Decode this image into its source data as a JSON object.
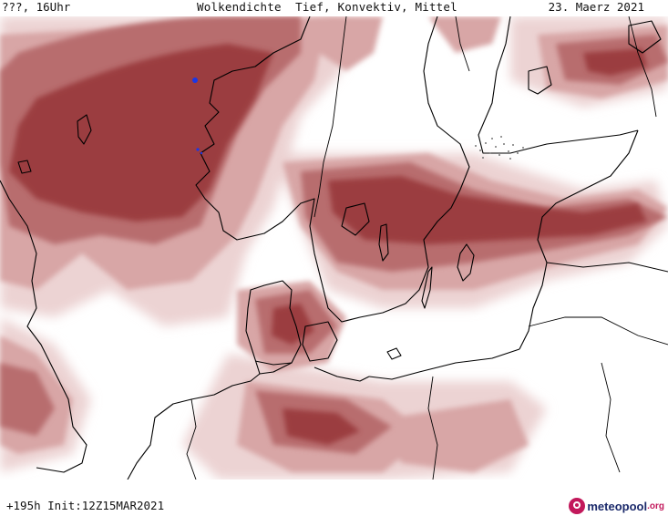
{
  "header": {
    "left": "???, 16Uhr",
    "center": "Wolkendichte  Tief, Konvektiv, Mittel",
    "right": "23. Maerz 2021"
  },
  "footer": {
    "run": "+195h Init:12Z15MAR2021"
  },
  "brand": {
    "name": "meteopool",
    "tld": ".org",
    "icon": "meteopool-logo-icon",
    "colors": {
      "primary": "#1b2a6b",
      "accent": "#c2185b"
    }
  },
  "map": {
    "region": "Nordsee, Skandinavien, Ostsee",
    "legend_colors": {
      "dense": "#9b3d3f",
      "medium": "#b86d6e",
      "light": "#d8a6a6",
      "sparse": "#ecd3d3"
    },
    "coastline_color": "#000000",
    "border_color": "#000000"
  }
}
